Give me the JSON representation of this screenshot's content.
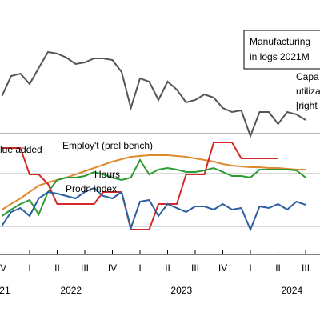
{
  "chart_data": {
    "type": "line",
    "x": [
      2021.875,
      2021.958,
      2022.042,
      2022.125,
      2022.208,
      2022.292,
      2022.375,
      2022.458,
      2022.542,
      2022.625,
      2022.708,
      2022.792,
      2022.875,
      2022.958,
      2023.042,
      2023.125,
      2023.208,
      2023.292,
      2023.375,
      2023.458,
      2023.542,
      2023.625,
      2023.708,
      2023.792,
      2023.875,
      2023.958,
      2024.042,
      2024.125,
      2024.208,
      2024.292,
      2024.375,
      2024.458,
      2024.542,
      2024.625
    ],
    "series": [
      {
        "name": "Capa",
        "color": "#555555",
        "values": [
          280,
          305,
          308,
          295,
          315,
          335,
          333,
          328,
          320,
          322,
          327,
          327,
          325,
          310,
          265,
          302,
          298,
          275,
          298,
          288,
          272,
          275,
          282,
          278,
          265,
          260,
          262,
          230,
          260,
          260,
          245,
          260,
          257,
          250
        ]
      },
      {
        "name": "Employ't (prel bench)",
        "color": "#e08a2e",
        "values": [
          138,
          145,
          152,
          160,
          168,
          172,
          175,
          178,
          182,
          186,
          190,
          194,
          198,
          201,
          204,
          205,
          206,
          206,
          206,
          205,
          204,
          202,
          200,
          198,
          195,
          193,
          192,
          191,
          191,
          190,
          190,
          189,
          188,
          188
        ]
      },
      {
        "name": "Hours",
        "color": "#2e9a34",
        "values": [
          130,
          138,
          145,
          150,
          132,
          160,
          175,
          178,
          178,
          180,
          185,
          182,
          178,
          175,
          178,
          200,
          182,
          188,
          190,
          188,
          185,
          185,
          187,
          190,
          185,
          180,
          180,
          178,
          188,
          188,
          188,
          188,
          187,
          178
        ]
      },
      {
        "name": "lue added",
        "color": "#d42a2a",
        "values": [
          215,
          215,
          215,
          182,
          182,
          170,
          145,
          145,
          145,
          145,
          145,
          160,
          160,
          160,
          113,
          113,
          113,
          145,
          145,
          145,
          182,
          182,
          182,
          222,
          222,
          222,
          202,
          202,
          202,
          202,
          202,
          null,
          null,
          null
        ]
      },
      {
        "name": "Prodn index",
        "color": "#2a5fa0",
        "values": [
          118,
          135,
          140,
          130,
          152,
          160,
          158,
          155,
          152,
          160,
          165,
          155,
          152,
          160,
          115,
          148,
          150,
          130,
          145,
          140,
          135,
          142,
          142,
          138,
          145,
          138,
          140,
          113,
          142,
          140,
          145,
          138,
          148,
          144
        ]
      }
    ],
    "legend_box": [
      "Manufacturing",
      "in logs 2021M"
    ],
    "right_label": [
      "Capa",
      "utiliza",
      "[right"
    ],
    "xlim": [
      2021.857,
      2024.755
    ],
    "ylim": [
      82,
      400
    ],
    "yticks": [
      117,
      183,
      233
    ],
    "grid": true,
    "xticks": [
      {
        "value": 2021.875,
        "label": "IV"
      },
      {
        "value": 2022.125,
        "label": "I"
      },
      {
        "value": 2022.375,
        "label": "II"
      },
      {
        "value": 2022.625,
        "label": "III"
      },
      {
        "value": 2022.875,
        "label": "IV"
      },
      {
        "value": 2023.125,
        "label": "I"
      },
      {
        "value": 2023.375,
        "label": "II"
      },
      {
        "value": 2023.625,
        "label": "III"
      },
      {
        "value": 2023.875,
        "label": "IV"
      },
      {
        "value": 2024.125,
        "label": "I"
      },
      {
        "value": 2024.375,
        "label": "II"
      },
      {
        "value": 2024.625,
        "label": "III"
      }
    ],
    "year_labels": [
      {
        "value": 2021.9,
        "label": "21"
      },
      {
        "value": 2022.5,
        "label": "2022"
      },
      {
        "value": 2023.5,
        "label": "2023"
      },
      {
        "value": 2024.5,
        "label": "2024"
      }
    ]
  }
}
